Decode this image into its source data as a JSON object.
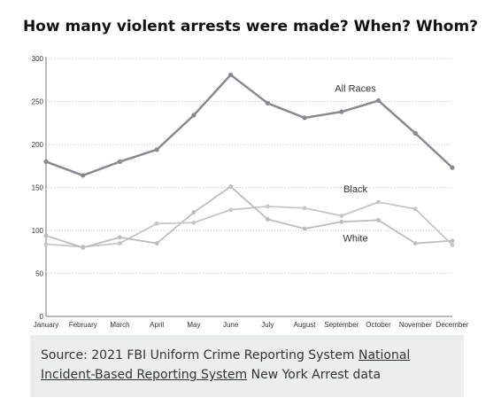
{
  "title": "How many violent arrests were made? When? Whom?",
  "chart_data": {
    "type": "line",
    "title": "How many violent arrests were made? When? Whom?",
    "categories": [
      "January",
      "February",
      "March",
      "April",
      "May",
      "June",
      "July",
      "August",
      "September",
      "October",
      "November",
      "December"
    ],
    "yticks": [
      0,
      50,
      100,
      150,
      200,
      250,
      300
    ],
    "ylim": [
      0,
      300
    ],
    "grid": true,
    "series": [
      {
        "name": "All Races",
        "color": "#8a8890",
        "values": [
          180,
          164,
          180,
          194,
          234,
          281,
          248,
          231,
          238,
          251,
          213,
          173
        ]
      },
      {
        "name": "Black",
        "color": "#c6c6c6",
        "values": [
          84,
          81,
          85,
          108,
          109,
          124,
          128,
          126,
          117,
          133,
          125,
          83
        ]
      },
      {
        "name": "White",
        "color": "#bdbdbd",
        "values": [
          94,
          80,
          92,
          85,
          121,
          151,
          113,
          102,
          110,
          112,
          85,
          88
        ]
      }
    ]
  },
  "source": {
    "prefix": "Source: 2021 FBI Uniform Crime Reporting System ",
    "link": "National Incident-Based Reporting System",
    "suffix": " New York Arrest data"
  }
}
